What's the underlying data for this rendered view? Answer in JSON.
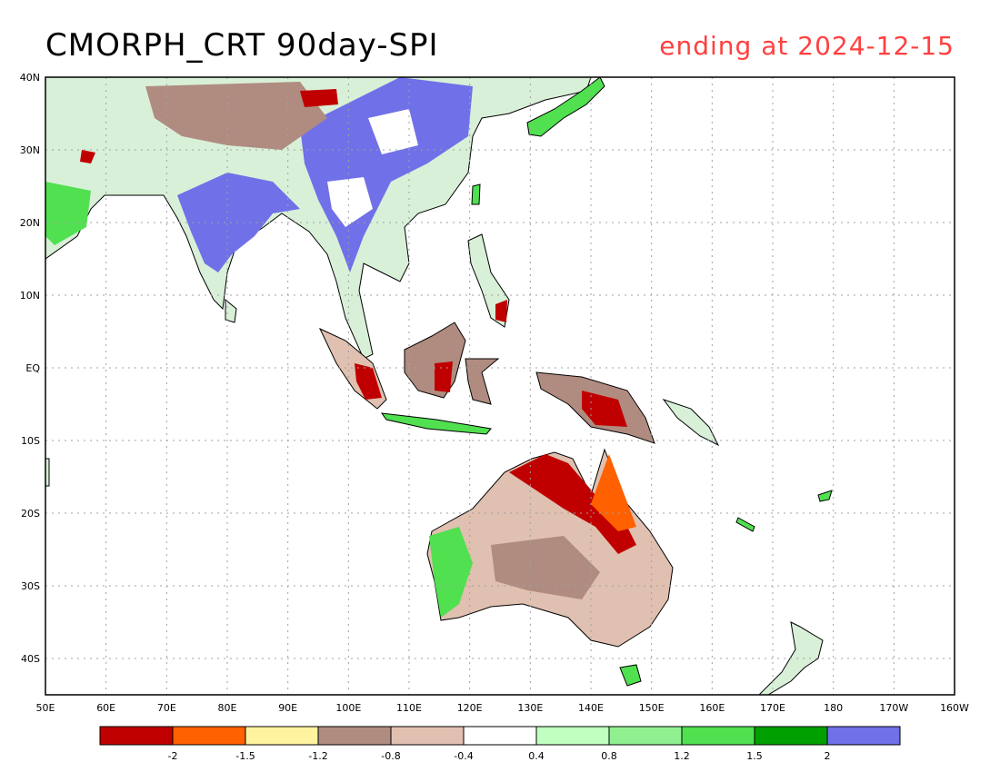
{
  "title": "CMORPH_CRT 90day-SPI",
  "subtitle": "ending at 2024-12-15",
  "map": {
    "lon_labels": [
      "50E",
      "60E",
      "70E",
      "80E",
      "90E",
      "100E",
      "110E",
      "120E",
      "130E",
      "140E",
      "150E",
      "160E",
      "170E",
      "180",
      "170W",
      "160W"
    ],
    "lat_labels": [
      "40N",
      "30N",
      "20N",
      "10N",
      "EQ",
      "10S",
      "20S",
      "30S",
      "40S"
    ]
  },
  "colorbar": {
    "colors": [
      "#c00000",
      "#ff6000",
      "#fff3a0",
      "#b08c80",
      "#e0c0b0",
      "#ffffff",
      "#c0ffc0",
      "#90f090",
      "#50e050",
      "#00a000",
      "#7070e8"
    ],
    "labels": [
      "-2",
      "-1.5",
      "-1.2",
      "-0.8",
      "-0.4",
      "0.4",
      "0.8",
      "1.2",
      "1.5",
      "2"
    ]
  },
  "colors": {
    "land_border": "#000000",
    "wet_extreme": "#7070e8",
    "dry_extreme": "#c00000",
    "grid": "#a0a0a0",
    "subtitle": "#ff4040"
  }
}
